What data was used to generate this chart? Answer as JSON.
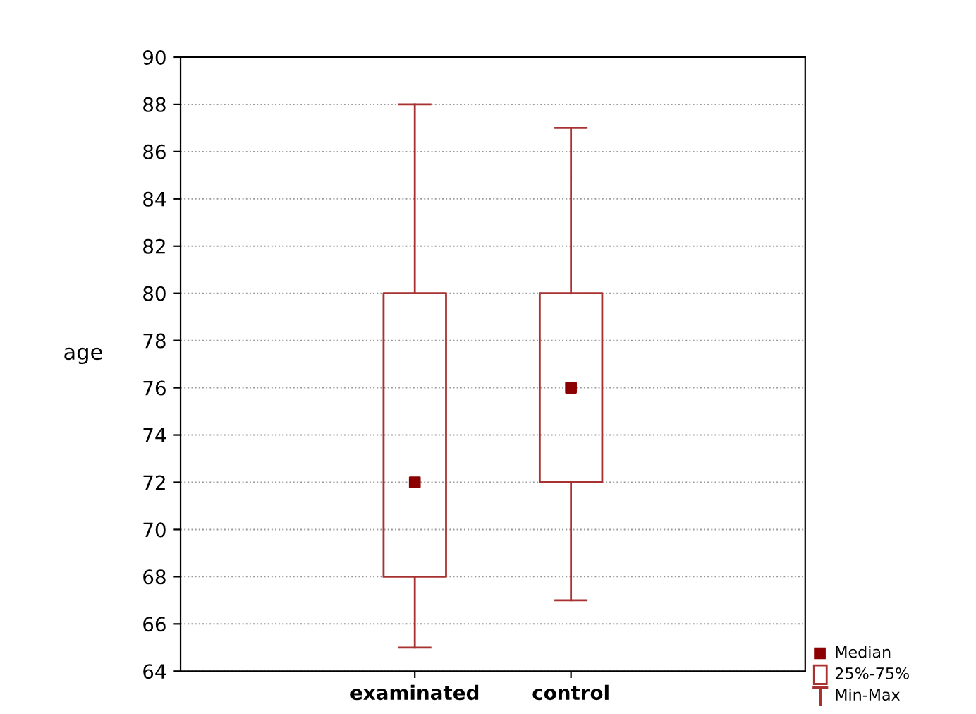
{
  "chart_data": {
    "type": "box",
    "ylabel": "age",
    "categories": [
      "examinated",
      "control"
    ],
    "series": [
      {
        "color": "#a83232",
        "boxes": [
          {
            "low": 65,
            "q1": 68,
            "median": 72,
            "q3": 80,
            "high": 88
          },
          {
            "low": 67,
            "q1": 72,
            "median": 76,
            "q3": 80,
            "high": 87
          }
        ]
      }
    ],
    "ylim": [
      64,
      90
    ],
    "yticks": [
      64,
      66,
      68,
      70,
      72,
      74,
      76,
      78,
      80,
      82,
      84,
      86,
      88,
      90
    ],
    "grid": "y",
    "marker": "square",
    "annotations": [
      "Median",
      "25%-75%",
      "Min-Max"
    ]
  }
}
